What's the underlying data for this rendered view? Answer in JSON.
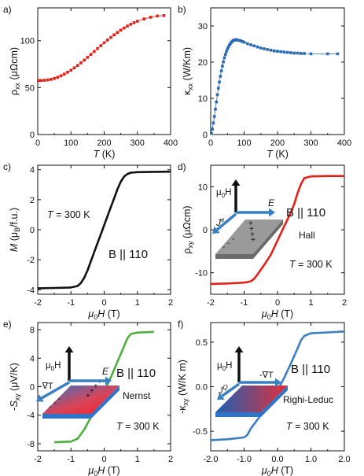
{
  "chart_data": [
    {
      "panel": "a)",
      "type": "line",
      "xlabel": "T (K)",
      "ylabel": "ρxx (μΩcm)",
      "xlim": [
        0,
        400
      ],
      "ylim": [
        0,
        135
      ],
      "xticks": [
        0,
        100,
        200,
        300,
        400
      ],
      "yticks": [
        0,
        50,
        100
      ],
      "series": [
        {
          "color": "#e32119",
          "marker": "square",
          "x": [
            2,
            10,
            20,
            30,
            40,
            50,
            60,
            70,
            80,
            90,
            100,
            110,
            120,
            130,
            140,
            150,
            160,
            170,
            180,
            190,
            200,
            210,
            220,
            230,
            240,
            250,
            260,
            270,
            280,
            290,
            300,
            320,
            340,
            360,
            380
          ],
          "y": [
            57.5,
            57.6,
            57.8,
            58.2,
            58.8,
            59.8,
            61.0,
            62.6,
            64.4,
            66.4,
            68.6,
            71.0,
            73.6,
            76.4,
            79.3,
            82.3,
            85.4,
            88.5,
            91.6,
            94.7,
            97.8,
            100.7,
            103.5,
            106.2,
            108.8,
            111.2,
            113.5,
            115.6,
            117.5,
            119.2,
            120.7,
            123.2,
            125.0,
            126.3,
            126.8
          ]
        }
      ]
    },
    {
      "panel": "b)",
      "type": "line",
      "xlabel": "T (K)",
      "ylabel": "κxx (W/Km)",
      "xlim": [
        0,
        400
      ],
      "ylim": [
        0,
        35
      ],
      "xticks": [
        0,
        100,
        200,
        300,
        400
      ],
      "yticks": [
        0,
        10,
        20,
        30
      ],
      "series": [
        {
          "color": "#2c6bb0",
          "marker": "square",
          "x": [
            2,
            5,
            8,
            11,
            14,
            17,
            20,
            23,
            26,
            29,
            32,
            35,
            38,
            41,
            44,
            47,
            50,
            53,
            56,
            59,
            62,
            65,
            68,
            71,
            74,
            77,
            80,
            85,
            90,
            95,
            100,
            110,
            120,
            130,
            140,
            150,
            160,
            170,
            180,
            190,
            200,
            210,
            220,
            230,
            240,
            250,
            260,
            270,
            280,
            300,
            350,
            380
          ],
          "y": [
            0.3,
            1.5,
            3.2,
            5.0,
            7.0,
            9.0,
            11.0,
            12.8,
            14.5,
            16.1,
            17.6,
            18.9,
            20.1,
            21.2,
            22.1,
            22.9,
            23.6,
            24.2,
            24.7,
            25.1,
            25.5,
            25.8,
            26.0,
            26.1,
            26.2,
            26.2,
            26.1,
            26.0,
            25.9,
            25.7,
            25.5,
            25.1,
            24.8,
            24.5,
            24.2,
            23.9,
            23.7,
            23.5,
            23.3,
            23.1,
            23.0,
            22.9,
            22.8,
            22.7,
            22.6,
            22.5,
            22.5,
            22.4,
            22.4,
            22.3,
            22.3,
            22.3
          ]
        }
      ]
    },
    {
      "panel": "c)",
      "type": "line",
      "xlabel": "μ0H (T)",
      "ylabel": "M (μB/f.u.)",
      "xlim": [
        -2,
        2
      ],
      "ylim": [
        -4.3,
        4.3
      ],
      "xticks": [
        -2,
        -1,
        0,
        1,
        2
      ],
      "yticks": [
        -4,
        -2,
        0,
        2,
        4
      ],
      "annotations": [
        "T = 300 K",
        "B || 110"
      ],
      "series": [
        {
          "color": "#111111",
          "x": [
            -2.0,
            -1.5,
            -1.0,
            -0.8,
            -0.7,
            -0.6,
            -0.5,
            -0.4,
            -0.3,
            -0.2,
            -0.1,
            0.0,
            0.1,
            0.2,
            0.3,
            0.4,
            0.5,
            0.6,
            0.7,
            0.8,
            1.0,
            1.5,
            2.0
          ],
          "y": [
            -3.9,
            -3.88,
            -3.85,
            -3.75,
            -3.55,
            -3.2,
            -2.7,
            -2.1,
            -1.5,
            -0.9,
            -0.3,
            0.3,
            0.9,
            1.5,
            2.1,
            2.7,
            3.2,
            3.55,
            3.72,
            3.8,
            3.84,
            3.86,
            3.87
          ]
        }
      ]
    },
    {
      "panel": "d)",
      "type": "line",
      "xlabel": "μ0H (T)",
      "ylabel": "ρxy (μΩcm)",
      "xlim": [
        -2,
        2
      ],
      "ylim": [
        -15,
        15
      ],
      "xticks": [
        -2,
        -1,
        0,
        1,
        2
      ],
      "yticks": [
        -10,
        0,
        10
      ],
      "annotations": [
        "B || 110",
        "Hall",
        "T = 300 K"
      ],
      "inset": {
        "field": "μ0H",
        "current": "J",
        "current_sup": "e",
        "field_out": "E"
      },
      "series": [
        {
          "color": "#e32119",
          "x": [
            -2.0,
            -1.5,
            -1.0,
            -0.8,
            -0.7,
            -0.6,
            -0.5,
            -0.4,
            -0.2,
            0.0,
            0.2,
            0.4,
            0.5,
            0.6,
            0.7,
            0.8,
            1.0,
            1.5,
            2.0
          ],
          "y": [
            -12.6,
            -12.5,
            -12.3,
            -12.0,
            -11.4,
            -10.4,
            -9.3,
            -8.2,
            -5.8,
            -2.5,
            0.8,
            4.0,
            6.0,
            8.5,
            10.6,
            12.0,
            12.4,
            12.5,
            12.5
          ]
        }
      ]
    },
    {
      "panel": "e)",
      "type": "line",
      "xlabel": "μ0H (T)",
      "ylabel": "-Sxy (μV/K)",
      "xlim": [
        -2,
        2
      ],
      "ylim": [
        -9,
        9
      ],
      "xticks": [
        -2,
        -1,
        0,
        1,
        2
      ],
      "yticks": [
        -8,
        -4,
        0,
        4,
        8
      ],
      "annotations": [
        "B || 110",
        "Nernst",
        "T = 300 K"
      ],
      "inset": {
        "field": "μ0H",
        "gradient": "-∇T",
        "field_out": "E"
      },
      "series": [
        {
          "color": "#4caf3c",
          "x": [
            -1.5,
            -1.0,
            -0.8,
            -0.6,
            -0.4,
            -0.2,
            0.0,
            0.2,
            0.4,
            0.6,
            0.7,
            0.8,
            1.0,
            1.5
          ],
          "y": [
            -7.8,
            -7.7,
            -7.3,
            -6.0,
            -4.3,
            -2.5,
            -0.7,
            1.3,
            3.5,
            5.7,
            6.8,
            7.4,
            7.6,
            7.7
          ]
        }
      ]
    },
    {
      "panel": "f)",
      "type": "line",
      "xlabel": "μ0H (T)",
      "ylabel": "-κxy (W/K m)",
      "xlim": [
        -2,
        2
      ],
      "ylim": [
        -0.72,
        0.72
      ],
      "xticks": [
        -2,
        -1,
        0,
        1,
        2
      ],
      "yticks": [
        -0.5,
        0.0,
        0.5
      ],
      "annotations": [
        "B || 110",
        "Righi-Leduc",
        "T = 300 K"
      ],
      "inset": {
        "field": "μ0H",
        "gradient": "-∇T",
        "current": "J",
        "current_sup": "Q"
      },
      "series": [
        {
          "color": "#3a7fc1",
          "x": [
            -2.0,
            -1.5,
            -1.0,
            -0.9,
            -0.8,
            -0.6,
            -0.4,
            -0.2,
            0.0,
            0.2,
            0.4,
            0.6,
            0.7,
            0.8,
            1.0,
            1.5,
            2.0
          ],
          "y": [
            -0.6,
            -0.59,
            -0.57,
            -0.54,
            -0.47,
            -0.37,
            -0.27,
            -0.16,
            -0.04,
            0.1,
            0.26,
            0.43,
            0.52,
            0.57,
            0.6,
            0.61,
            0.62
          ]
        }
      ]
    }
  ]
}
